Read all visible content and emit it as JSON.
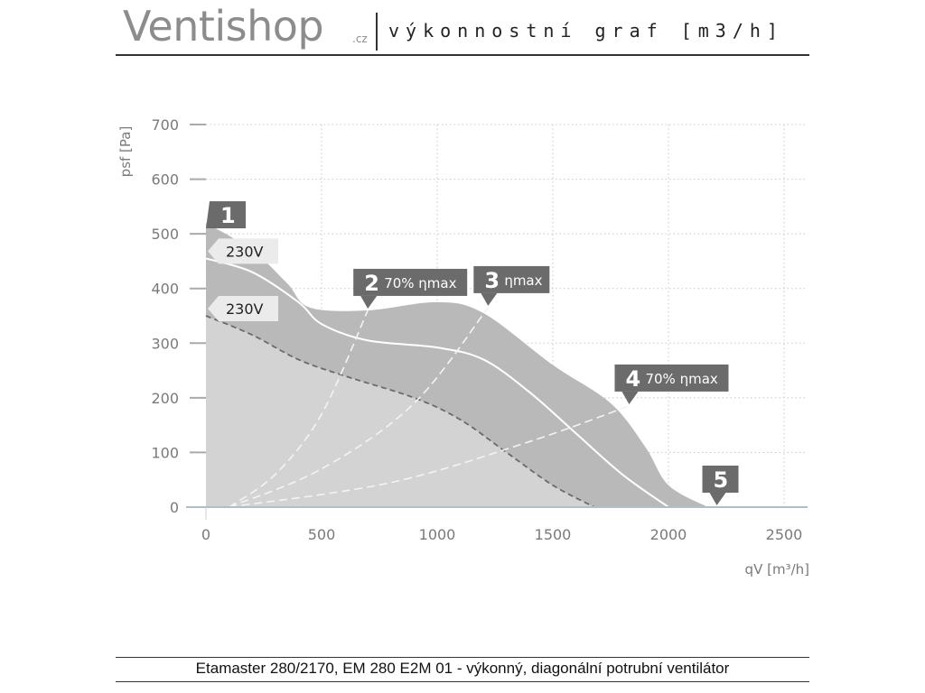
{
  "header": {
    "logo_text": "Ventishop",
    "logo_suffix": ".cz",
    "title": "výkonnostní graf [m3/h]"
  },
  "footer": {
    "caption": "Etamaster 280/2170, EM 280 E2M 01 - výkonný, diagonální potrubní ventilátor"
  },
  "colors": {
    "area_light": "#d3d3d3",
    "area_dark": "#b9b9b9",
    "marker": "#6b6b6b",
    "axis_text": "#7a7a7a",
    "grid": "#c8c8c8"
  },
  "chart_data": {
    "type": "area",
    "xlabel": "qV [m³/h]",
    "ylabel": "psf [Pa]",
    "xlim": [
      0,
      2500
    ],
    "ylim": [
      0,
      700
    ],
    "xticks": [
      "0",
      "500",
      "1000",
      "1500",
      "2000",
      "2500"
    ],
    "yticks": [
      "0",
      "100",
      "200",
      "300",
      "400",
      "500",
      "600",
      "700"
    ],
    "grid": true,
    "series": [
      {
        "name": "",
        "style": "area-outer",
        "x": [
          0,
          200,
          350,
          450,
          700,
          1000,
          1200,
          1500,
          1750,
          1900,
          2000,
          2170
        ],
        "y": [
          520,
          470,
          410,
          365,
          360,
          375,
          355,
          260,
          190,
          110,
          40,
          0
        ]
      },
      {
        "name": "230V",
        "style": "solid-white",
        "x": [
          0,
          200,
          400,
          500,
          700,
          1000,
          1200,
          1400,
          1600,
          1800,
          2000
        ],
        "y": [
          455,
          430,
          375,
          335,
          305,
          292,
          270,
          210,
          135,
          60,
          0
        ]
      },
      {
        "name": "230V",
        "style": "dashed-dark",
        "x": [
          0,
          200,
          400,
          600,
          900,
          1100,
          1300,
          1500,
          1680
        ],
        "y": [
          350,
          315,
          270,
          240,
          200,
          160,
          100,
          40,
          0
        ]
      },
      {
        "name": "70% ηmax",
        "style": "dashed-white",
        "x": [
          100,
          300,
          500,
          700
        ],
        "y": [
          0,
          60,
          170,
          360
        ]
      },
      {
        "name": "ηmax",
        "style": "dashed-white",
        "x": [
          100,
          500,
          900,
          1220
        ],
        "y": [
          0,
          70,
          190,
          365
        ]
      },
      {
        "name": "70% ηmax",
        "style": "dashed-white",
        "x": [
          100,
          800,
          1400,
          1830
        ],
        "y": [
          0,
          45,
          120,
          185
        ]
      }
    ],
    "markers": [
      {
        "number": "1",
        "text": "",
        "x": 0,
        "y": 520
      },
      {
        "number": "2",
        "text": "70% ηmax",
        "x": 700,
        "y": 360
      },
      {
        "number": "3",
        "text": "ηmax",
        "x": 1220,
        "y": 365
      },
      {
        "number": "4",
        "text": "70% ηmax",
        "x": 1830,
        "y": 185
      },
      {
        "number": "5",
        "text": "",
        "x": 2170,
        "y": 0
      }
    ],
    "voltage_labels": [
      {
        "text": "230V",
        "x": 0,
        "y": 455
      },
      {
        "text": "230V",
        "x": 0,
        "y": 350
      }
    ]
  }
}
